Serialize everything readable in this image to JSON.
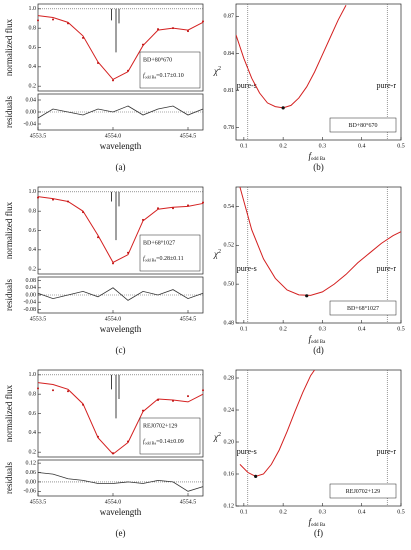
{
  "chart_data": [
    {
      "type": "spectrum",
      "caption": "(a)",
      "star": "BD+80°670",
      "f_label": "f",
      "f_sub": "odd Ba",
      "f_value": "=0.17±0.10",
      "ylabel": "normalized flux",
      "res_ylabel": "residuals",
      "xlabel": "wavelength",
      "x": [
        4553.5,
        4553.6,
        4553.7,
        4553.8,
        4553.9,
        4554.0,
        4554.1,
        4554.2,
        4554.3,
        4554.4,
        4554.5,
        4554.6
      ],
      "model": {
        "color": "#d42020",
        "values": [
          0.93,
          0.91,
          0.86,
          0.72,
          0.45,
          0.27,
          0.35,
          0.62,
          0.78,
          0.8,
          0.78,
          0.86
        ]
      },
      "observed": [
        0.88,
        0.89,
        0.85,
        0.7,
        0.44,
        0.26,
        0.36,
        0.63,
        0.79,
        0.8,
        0.77,
        0.87
      ],
      "residuals": [
        -0.02,
        0.01,
        0.0,
        -0.01,
        0.01,
        0.0,
        0.02,
        -0.01,
        0.01,
        0.02,
        -0.01,
        0.01
      ],
      "markers": [
        {
          "x": 4553.99,
          "y": 0.88
        },
        {
          "x": 4554.02,
          "y": 0.55
        },
        {
          "x": 4554.04,
          "y": 0.85
        }
      ],
      "xlim": [
        4553.5,
        4554.6
      ],
      "xticks": [
        4553.5,
        {
          "value": 4554.0,
          "label": "4554.0"
        },
        4554.5
      ],
      "ylim": [
        0.15,
        1.05
      ],
      "yticks": [
        0.2,
        0.4,
        0.6,
        0.8,
        {
          "value": 1.0,
          "label": "1.0"
        }
      ],
      "res_ylim": [
        -0.06,
        0.06
      ],
      "res_yticks": [
        {
          "value": -0.04,
          "label": "-0.04"
        },
        {
          "value": 0.0,
          "label": "0.00"
        },
        0.04
      ]
    },
    {
      "type": "chi2",
      "caption": "(b)",
      "star": "BD+80°670",
      "ylabel": "χ",
      "ylabel_sup": "2",
      "f_label": "f",
      "f_sub": "odd Ba",
      "color": "#d42020",
      "x": [
        0.08,
        0.1,
        0.12,
        0.14,
        0.16,
        0.18,
        0.2,
        0.22,
        0.24,
        0.26,
        0.28,
        0.3,
        0.32,
        0.34,
        0.36
      ],
      "values": [
        0.855,
        0.836,
        0.82,
        0.808,
        0.8,
        0.797,
        0.796,
        0.798,
        0.804,
        0.813,
        0.825,
        0.839,
        0.853,
        0.867,
        0.879
      ],
      "best": {
        "x": 0.2,
        "y": 0.796
      },
      "pure_s": {
        "label": "pure-s",
        "x": 0.11
      },
      "pure_r": {
        "label": "pure-r",
        "x": 0.465
      },
      "xlim": [
        0.08,
        0.5
      ],
      "xticks": [
        0.1,
        0.2,
        0.3,
        0.4,
        0.5
      ],
      "ylim": [
        0.77,
        0.88
      ],
      "yticks": [
        0.78,
        0.81,
        0.84,
        0.87
      ]
    },
    {
      "type": "spectrum",
      "caption": "(c)",
      "star": "BD+68°1027",
      "f_label": "f",
      "f_sub": "odd Ba",
      "f_value": "=0.28±0.11",
      "ylabel": "normalized flux",
      "res_ylabel": "residuals",
      "xlabel": "wavelength",
      "x": [
        4553.5,
        4553.6,
        4553.7,
        4553.8,
        4553.9,
        4554.0,
        4554.1,
        4554.2,
        4554.3,
        4554.4,
        4554.5,
        4554.6
      ],
      "model": {
        "color": "#d42020",
        "values": [
          0.95,
          0.93,
          0.9,
          0.8,
          0.55,
          0.27,
          0.35,
          0.7,
          0.82,
          0.84,
          0.85,
          0.88
        ]
      },
      "observed": [
        0.94,
        0.92,
        0.9,
        0.79,
        0.53,
        0.26,
        0.37,
        0.71,
        0.83,
        0.83,
        0.86,
        0.89
      ],
      "residuals": [
        0.01,
        -0.02,
        0.0,
        0.02,
        -0.01,
        0.04,
        -0.03,
        0.02,
        0.0,
        0.03,
        -0.02,
        0.01
      ],
      "markers": [
        {
          "x": 4553.99,
          "y": 0.9
        },
        {
          "x": 4554.02,
          "y": 0.5
        },
        {
          "x": 4554.04,
          "y": 0.85
        }
      ],
      "xlim": [
        4553.5,
        4554.6
      ],
      "xticks": [
        4553.5,
        {
          "value": 4554.0,
          "label": "4554.0"
        },
        4554.5
      ],
      "ylim": [
        0.15,
        1.05
      ],
      "yticks": [
        0.2,
        0.4,
        0.6,
        0.8,
        {
          "value": 1.0,
          "label": "1.0"
        }
      ],
      "res_ylim": [
        -0.1,
        0.1
      ],
      "res_yticks": [
        {
          "value": -0.08,
          "label": "-0.08"
        },
        {
          "value": -0.04,
          "label": "-0.04"
        },
        {
          "value": 0.0,
          "label": "0.00"
        },
        0.04,
        0.08
      ]
    },
    {
      "type": "chi2",
      "caption": "(d)",
      "star": "BD+68°1027",
      "ylabel": "χ",
      "ylabel_sup": "2",
      "f_label": "f",
      "f_sub": "odd Ba",
      "color": "#d42020",
      "x": [
        0.09,
        0.12,
        0.15,
        0.18,
        0.21,
        0.24,
        0.27,
        0.3,
        0.33,
        0.36,
        0.39,
        0.42,
        0.45,
        0.48,
        0.5
      ],
      "values": [
        0.55,
        0.528,
        0.513,
        0.503,
        0.497,
        0.4945,
        0.4942,
        0.496,
        0.5,
        0.505,
        0.511,
        0.516,
        0.521,
        0.525,
        0.527
      ],
      "best": {
        "x": 0.26,
        "y": 0.494
      },
      "pure_s": {
        "label": "pure-s",
        "x": 0.11
      },
      "pure_r": {
        "label": "pure-r",
        "x": 0.465
      },
      "xlim": [
        0.08,
        0.5
      ],
      "xticks": [
        0.1,
        0.2,
        0.3,
        0.4,
        0.5
      ],
      "ylim": [
        0.48,
        0.55
      ],
      "yticks": [
        0.48,
        {
          "value": 0.5,
          "label": "0.50"
        },
        0.52,
        0.54
      ]
    },
    {
      "type": "spectrum",
      "caption": "(e)",
      "star": "REJ0702+129",
      "f_label": "f",
      "f_sub": "odd Ba",
      "f_value": "=0.14±0.09",
      "ylabel": "normalized flux",
      "res_ylabel": "residuals",
      "xlabel": "wavelength",
      "x": [
        4553.5,
        4553.6,
        4553.7,
        4553.8,
        4553.9,
        4554.0,
        4554.1,
        4554.2,
        4554.3,
        4554.4,
        4554.5,
        4554.6
      ],
      "model": {
        "color": "#d42020",
        "values": [
          0.92,
          0.9,
          0.85,
          0.7,
          0.35,
          0.18,
          0.3,
          0.62,
          0.75,
          0.74,
          0.72,
          0.8
        ]
      },
      "observed": [
        0.86,
        0.84,
        0.83,
        0.69,
        0.36,
        0.19,
        0.31,
        0.63,
        0.74,
        0.73,
        0.78,
        0.84
      ],
      "residuals": [
        0.06,
        0.05,
        0.02,
        0.01,
        -0.01,
        -0.01,
        0.0,
        -0.01,
        0.01,
        0.0,
        -0.06,
        -0.03
      ],
      "markers": [
        {
          "x": 4553.99,
          "y": 0.85
        },
        {
          "x": 4554.02,
          "y": 0.55
        },
        {
          "x": 4554.04,
          "y": 0.75
        }
      ],
      "xlim": [
        4553.5,
        4554.6
      ],
      "xticks": [
        4553.5,
        {
          "value": 4554.0,
          "label": "4554.0"
        },
        4554.5
      ],
      "ylim": [
        0.15,
        1.05
      ],
      "yticks": [
        0.2,
        0.4,
        0.6,
        0.8,
        {
          "value": 1.0,
          "label": "1.0"
        }
      ],
      "res_ylim": [
        -0.09,
        0.14
      ],
      "res_yticks": [
        {
          "value": -0.06,
          "label": "-0.06"
        },
        {
          "value": 0.0,
          "label": "0.00"
        },
        0.06,
        0.12
      ]
    },
    {
      "type": "chi2",
      "caption": "(f)",
      "star": "REJ0702+129",
      "ylabel": "χ",
      "ylabel_sup": "2",
      "f_label": "f",
      "f_sub": "odd Ba",
      "color": "#d42020",
      "x": [
        0.09,
        0.11,
        0.13,
        0.15,
        0.17,
        0.19,
        0.21,
        0.23,
        0.25,
        0.27,
        0.28
      ],
      "values": [
        0.172,
        0.162,
        0.157,
        0.16,
        0.172,
        0.19,
        0.213,
        0.238,
        0.262,
        0.283,
        0.29
      ],
      "best": {
        "x": 0.13,
        "y": 0.157
      },
      "pure_s": {
        "label": "pure-s",
        "x": 0.11
      },
      "pure_r": {
        "label": "pure-r",
        "x": 0.465
      },
      "xlim": [
        0.08,
        0.5
      ],
      "xticks": [
        0.1,
        0.2,
        0.3,
        0.4,
        0.5
      ],
      "ylim": [
        0.12,
        0.29
      ],
      "yticks": [
        0.12,
        0.16,
        {
          "value": 0.2,
          "label": "0.20"
        },
        0.24,
        0.28
      ]
    }
  ]
}
